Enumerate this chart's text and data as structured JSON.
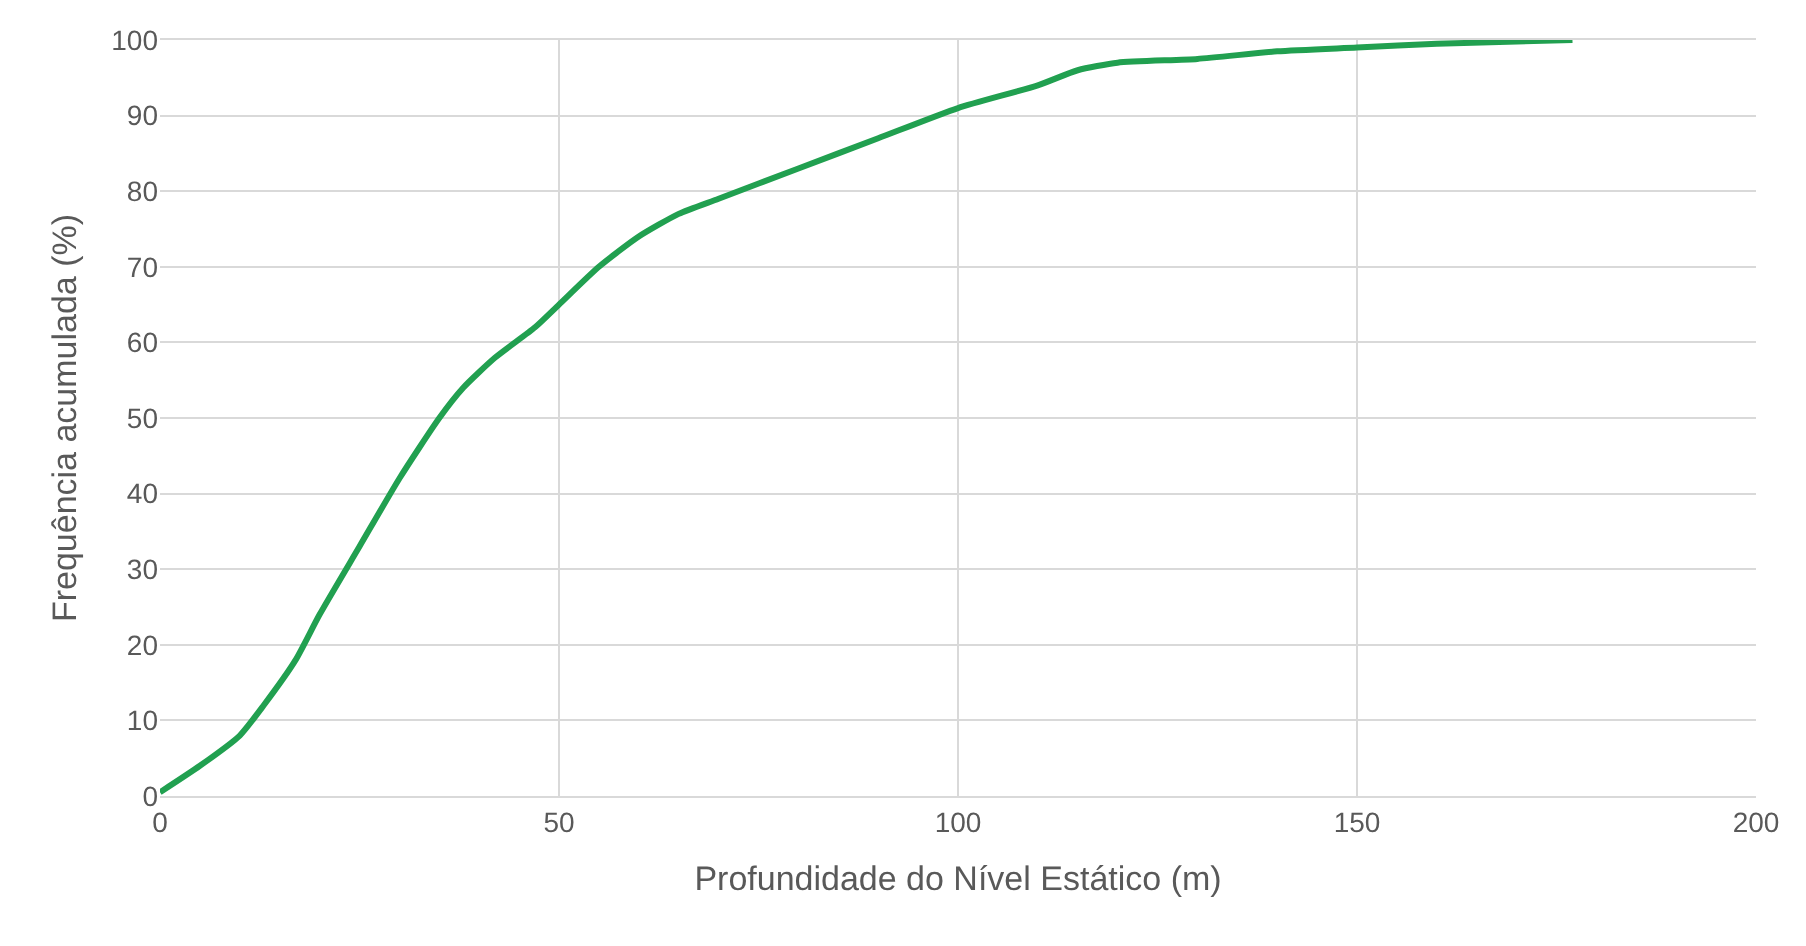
{
  "chart_data": {
    "type": "line",
    "xlabel": "Profundidade do Nível Estático (m)",
    "ylabel": "Frequência acumulada (%)",
    "x": [
      0,
      5,
      10,
      13,
      17,
      20,
      25,
      30,
      35,
      38,
      42,
      47,
      50,
      55,
      60,
      65,
      70,
      80,
      90,
      100,
      110,
      115,
      120,
      130,
      140,
      150,
      160,
      177
    ],
    "series": [
      {
        "color": "#21a050",
        "values": [
          0.5,
          4,
          8,
          12,
          18,
          24,
          33,
          42,
          50,
          54,
          58,
          62,
          65,
          70,
          74,
          77,
          79,
          83,
          87,
          91,
          94,
          96,
          97,
          97.5,
          98.5,
          99,
          99.5,
          100
        ]
      }
    ],
    "xlim": [
      0,
      200
    ],
    "xticks": [
      0,
      50,
      100,
      150,
      200
    ],
    "ylim": [
      0,
      100
    ],
    "yticks": [
      0,
      10,
      20,
      30,
      40,
      50,
      60,
      70,
      80,
      90,
      100
    ],
    "grid": true,
    "marker": "none",
    "line_style": "solid"
  }
}
